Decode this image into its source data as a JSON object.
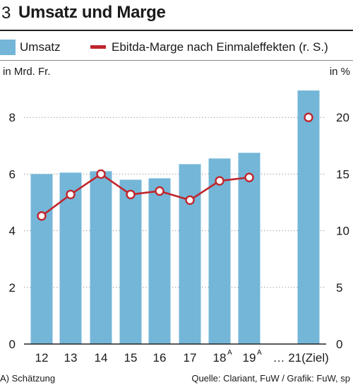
{
  "figure_number": "3",
  "title": "Umsatz und Marge",
  "legend": {
    "bars_label": "Umsatz",
    "line_label": "Ebitda-Marge nach Einmaleffekten (r. S.)"
  },
  "footer": {
    "note": "A) Schätzung",
    "source": "Quelle: Clariant, FuW / Grafik: FuW, sp"
  },
  "colors": {
    "bar": "#74b6d8",
    "line": "#c0262d",
    "grid": "#8a8a8a"
  },
  "chart_data": {
    "type": "bar",
    "left_axis_unit": "in Mrd. Fr.",
    "right_axis_unit": "in %",
    "categories": [
      "12",
      "13",
      "14",
      "15",
      "16",
      "17",
      "18",
      "19",
      "21(Ziel)"
    ],
    "superscripts": [
      "",
      "",
      "",
      "",
      "",
      "",
      "A",
      "A",
      ""
    ],
    "gap_marker": "…",
    "series": [
      {
        "name": "Umsatz",
        "axis": "left",
        "type": "bar",
        "values": [
          6.0,
          6.05,
          6.1,
          5.8,
          5.85,
          6.35,
          6.55,
          6.75,
          8.95
        ]
      },
      {
        "name": "Ebitda-Marge nach Einmaleffekten (r. S.)",
        "axis": "right",
        "type": "line",
        "values": [
          11.3,
          13.2,
          15.0,
          13.2,
          13.5,
          12.7,
          14.4,
          14.7,
          20.0
        ],
        "break_before_index": 8
      }
    ],
    "left_ylim": [
      0,
      10
    ],
    "left_ticks": [
      0,
      2,
      4,
      6,
      8
    ],
    "right_ylim": [
      0,
      25
    ],
    "right_ticks": [
      0,
      5,
      10,
      15,
      20
    ],
    "grid": "horizontal-dotted"
  }
}
